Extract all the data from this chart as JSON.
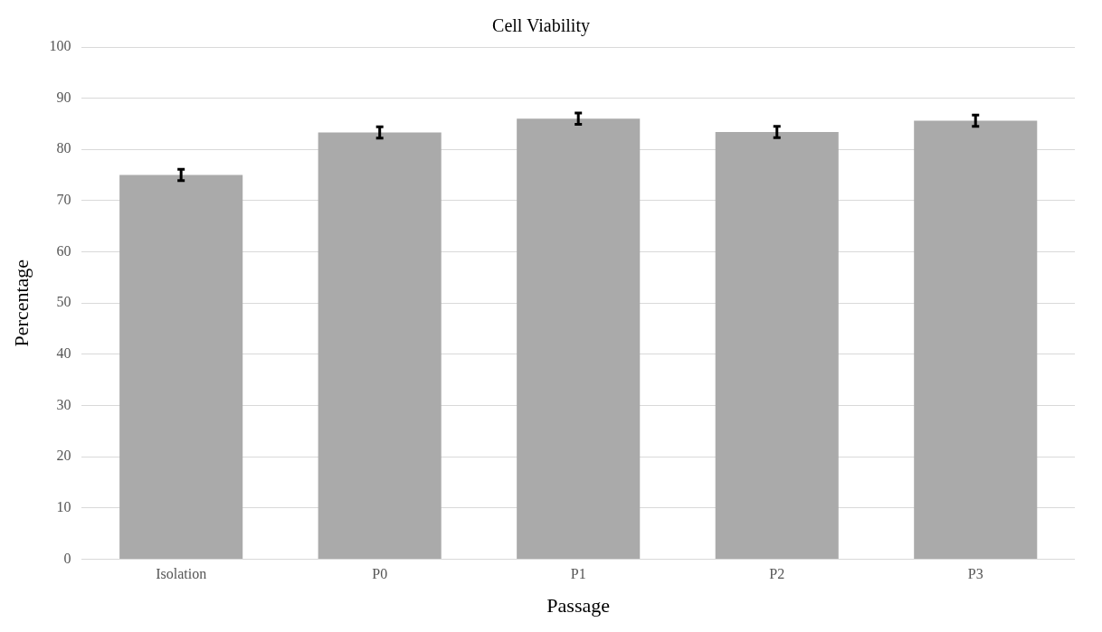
{
  "chart_data": {
    "type": "bar",
    "title": "Cell Viability",
    "xlabel": "Passage",
    "ylabel": "Percentage",
    "categories": [
      "Isolation",
      "P0",
      "P1",
      "P2",
      "P3"
    ],
    "values": [
      75.0,
      83.3,
      86.0,
      83.4,
      85.6
    ],
    "errors": [
      1.1,
      1.1,
      1.1,
      1.1,
      1.1
    ],
    "color": "#aaaaaa",
    "ylim": [
      0,
      100
    ],
    "yticks": [
      0,
      10,
      20,
      30,
      40,
      50,
      60,
      70,
      80,
      90,
      100
    ],
    "grid": "y",
    "legend": false
  }
}
